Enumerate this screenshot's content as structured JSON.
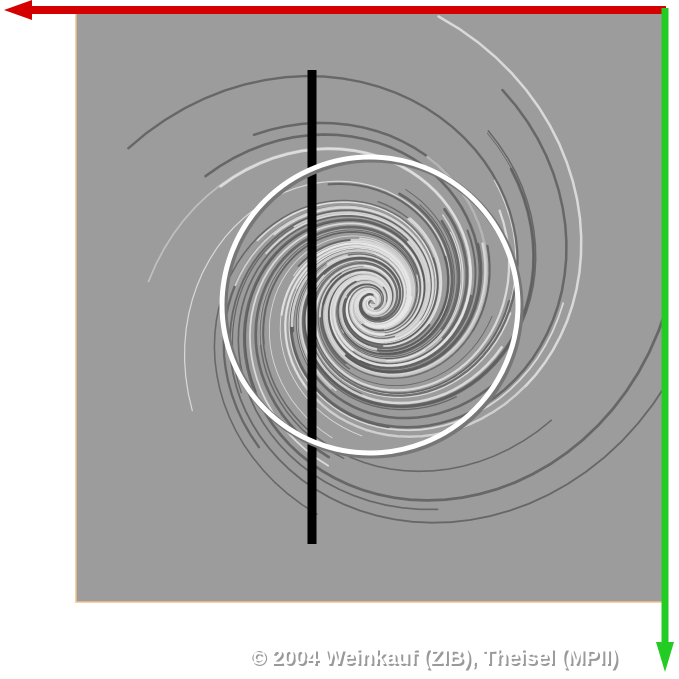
{
  "credit": "© 2004 Weinkauf (ZIB), Theisel (MPII)"
}
